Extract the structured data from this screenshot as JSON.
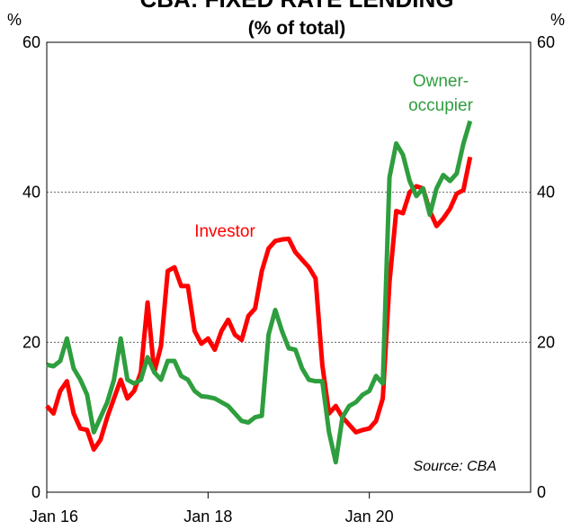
{
  "chart_data": {
    "type": "line",
    "title": "CBA: FIXED RATE LENDING",
    "subtitle": "(% of total)",
    "y_unit": "%",
    "y2_unit": "%",
    "source": "Source: CBA",
    "x": [
      "2016-01",
      "2016-02",
      "2016-03",
      "2016-04",
      "2016-05",
      "2016-06",
      "2016-07",
      "2016-08",
      "2016-09",
      "2016-10",
      "2016-11",
      "2016-12",
      "2017-01",
      "2017-02",
      "2017-03",
      "2017-04",
      "2017-05",
      "2017-06",
      "2017-07",
      "2017-08",
      "2017-09",
      "2017-10",
      "2017-11",
      "2017-12",
      "2018-01",
      "2018-02",
      "2018-03",
      "2018-04",
      "2018-05",
      "2018-06",
      "2018-07",
      "2018-08",
      "2018-09",
      "2018-10",
      "2018-11",
      "2018-12",
      "2019-01",
      "2019-02",
      "2019-03",
      "2019-04",
      "2019-05",
      "2019-06",
      "2019-07",
      "2019-08",
      "2019-09",
      "2019-10",
      "2019-11",
      "2019-12",
      "2020-01",
      "2020-02",
      "2020-03",
      "2020-04",
      "2020-05",
      "2020-06",
      "2020-07",
      "2020-08",
      "2020-09",
      "2020-10",
      "2020-11",
      "2020-12",
      "2021-01",
      "2021-02",
      "2021-03",
      "2021-04"
    ],
    "series": [
      {
        "name": "Investor",
        "color": "#ff0000",
        "values": [
          11.5,
          10.5,
          13.5,
          14.8,
          10.5,
          8.5,
          8.3,
          5.7,
          7,
          10,
          12.5,
          15,
          12.5,
          13.5,
          16,
          25.3,
          16,
          19.5,
          29.5,
          30,
          27.5,
          27.5,
          21.5,
          19.8,
          20.5,
          19,
          21.5,
          23,
          21,
          20.3,
          23.5,
          24.5,
          29.5,
          32.5,
          33.5,
          33.7,
          33.8,
          32,
          31,
          30,
          28.5,
          17,
          10.5,
          11.5,
          10,
          9,
          8,
          8.3,
          8.5,
          9.5,
          12.5,
          28,
          37.5,
          37.2,
          40,
          40.8,
          40.5,
          37.5,
          35.5,
          36.5,
          37.8,
          39.8,
          40.3,
          44.7
        ]
      },
      {
        "name": "Owner-occupier",
        "color": "#2e9e3e",
        "values": [
          17,
          16.8,
          17.5,
          20.5,
          16.5,
          15,
          13,
          8,
          10,
          12,
          15,
          20.5,
          15,
          14.5,
          15,
          18,
          16,
          15,
          17.5,
          17.5,
          15.5,
          15,
          13.5,
          12.8,
          12.7,
          12.5,
          12,
          11.5,
          10.5,
          9.5,
          9.3,
          10,
          10.2,
          21,
          24.3,
          21.5,
          19.2,
          19,
          16.5,
          15,
          14.8,
          14.8,
          8,
          4,
          10,
          11.5,
          12,
          13,
          13.5,
          15.5,
          14.5,
          42,
          46.5,
          45,
          41.5,
          39.5,
          40.5,
          37,
          40.5,
          42.3,
          41.5,
          42.5,
          46.5,
          49.5
        ]
      }
    ],
    "xlim": [
      "2016-01",
      "2022-01"
    ],
    "xticks": [
      {
        "value": "2016-01",
        "label": "Jan 16"
      },
      {
        "value": "2018-01",
        "label": "Jan 18"
      },
      {
        "value": "2020-01",
        "label": "Jan 20"
      }
    ],
    "ylim": [
      0,
      60
    ],
    "yticks": [
      0,
      20,
      40,
      60
    ],
    "y2lim": [
      0,
      60
    ],
    "y2ticks": [
      0,
      20,
      40,
      60
    ],
    "grid": true
  }
}
